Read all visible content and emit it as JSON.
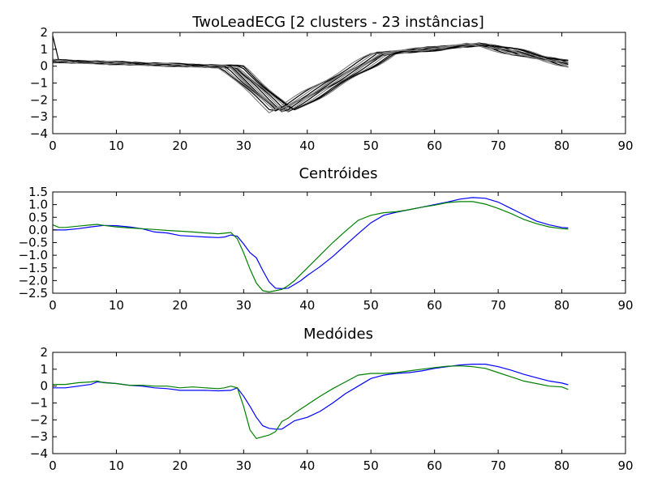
{
  "chart_data": [
    {
      "type": "line",
      "title": "TwoLeadECG [2 clusters - 23 instâncias]",
      "xlabel": "",
      "ylabel": "",
      "xlim": [
        0,
        90
      ],
      "ylim": [
        -4,
        2
      ],
      "xticks": [
        0,
        10,
        20,
        30,
        40,
        50,
        60,
        70,
        80,
        90
      ],
      "yticks": [
        2,
        1,
        0,
        -1,
        -2,
        -3,
        -4
      ],
      "grid": false,
      "legend": "none",
      "series_colors": {
        "cluster_a": "#000000",
        "cluster_b": "#808080"
      },
      "series": []
    },
    {
      "type": "line",
      "title": "Centróides",
      "xlabel": "",
      "ylabel": "",
      "xlim": [
        0,
        90
      ],
      "ylim": [
        -2.5,
        1.5
      ],
      "xticks": [
        0,
        10,
        20,
        30,
        40,
        50,
        60,
        70,
        80,
        90
      ],
      "yticks": [
        "1.5",
        "1.0",
        "0.5",
        "0.0",
        "−0.5",
        "−1.0",
        "−1.5",
        "−2.0",
        "−2.5"
      ],
      "grid": false,
      "legend": "none",
      "series": [
        {
          "color": "#0000ff",
          "x": [
            0,
            2,
            4,
            6,
            8,
            10,
            12,
            14,
            16,
            18,
            20,
            22,
            24,
            26,
            27,
            28,
            29,
            30,
            31,
            32,
            33,
            34,
            35,
            36,
            37,
            38,
            39,
            40,
            42,
            44,
            46,
            48,
            50,
            52,
            54,
            56,
            58,
            60,
            62,
            64,
            66,
            68,
            70,
            72,
            74,
            76,
            78,
            80,
            81
          ],
          "values": [
            0.0,
            0.0,
            0.05,
            0.12,
            0.18,
            0.17,
            0.12,
            0.05,
            -0.08,
            -0.12,
            -0.22,
            -0.25,
            -0.28,
            -0.3,
            -0.28,
            -0.2,
            -0.25,
            -0.55,
            -0.9,
            -1.1,
            -1.6,
            -2.05,
            -2.3,
            -2.32,
            -2.3,
            -2.15,
            -2.0,
            -1.8,
            -1.45,
            -1.05,
            -0.6,
            -0.15,
            0.28,
            0.58,
            0.7,
            0.8,
            0.9,
            1.0,
            1.1,
            1.22,
            1.28,
            1.25,
            1.1,
            0.85,
            0.6,
            0.35,
            0.2,
            0.1,
            0.08
          ]
        },
        {
          "color": "#008000",
          "x": [
            0,
            1,
            2,
            4,
            6,
            7,
            8,
            10,
            12,
            14,
            16,
            18,
            20,
            22,
            24,
            26,
            27,
            28,
            29,
            30,
            31,
            32,
            33,
            34,
            35,
            36,
            37,
            38,
            39,
            40,
            42,
            44,
            46,
            48,
            50,
            52,
            54,
            56,
            58,
            60,
            62,
            64,
            66,
            68,
            70,
            72,
            74,
            76,
            78,
            80,
            81
          ],
          "values": [
            0.2,
            0.1,
            0.1,
            0.15,
            0.2,
            0.22,
            0.18,
            0.12,
            0.08,
            0.05,
            0.02,
            -0.02,
            -0.05,
            -0.08,
            -0.12,
            -0.15,
            -0.13,
            -0.1,
            -0.35,
            -0.9,
            -1.55,
            -2.1,
            -2.4,
            -2.45,
            -2.4,
            -2.35,
            -2.2,
            -2.0,
            -1.75,
            -1.5,
            -1.0,
            -0.5,
            -0.05,
            0.38,
            0.58,
            0.68,
            0.72,
            0.8,
            0.9,
            0.98,
            1.08,
            1.12,
            1.12,
            1.02,
            0.85,
            0.65,
            0.42,
            0.25,
            0.12,
            0.05,
            0.03
          ]
        }
      ]
    },
    {
      "type": "line",
      "title": "Medóides",
      "xlabel": "",
      "ylabel": "",
      "xlim": [
        0,
        90
      ],
      "ylim": [
        -4,
        2
      ],
      "xticks": [
        0,
        10,
        20,
        30,
        40,
        50,
        60,
        70,
        80,
        90
      ],
      "yticks": [
        2,
        1,
        0,
        -1,
        -2,
        -3,
        -4
      ],
      "grid": false,
      "legend": "none",
      "series": [
        {
          "color": "#0000ff",
          "x": [
            0,
            2,
            4,
            6,
            7,
            8,
            10,
            12,
            14,
            16,
            18,
            20,
            22,
            24,
            26,
            28,
            29,
            30,
            31,
            32,
            33,
            34,
            35,
            36,
            37,
            38,
            40,
            42,
            44,
            46,
            48,
            50,
            52,
            54,
            56,
            58,
            60,
            62,
            64,
            66,
            68,
            70,
            72,
            74,
            76,
            78,
            80,
            81
          ],
          "values": [
            -0.1,
            -0.1,
            0.0,
            0.1,
            0.25,
            0.22,
            0.15,
            0.05,
            0.0,
            -0.1,
            -0.15,
            -0.25,
            -0.25,
            -0.25,
            -0.28,
            -0.25,
            -0.1,
            -0.6,
            -1.2,
            -1.85,
            -2.35,
            -2.5,
            -2.55,
            -2.55,
            -2.3,
            -2.05,
            -1.85,
            -1.5,
            -1.0,
            -0.45,
            0.0,
            0.45,
            0.65,
            0.75,
            0.8,
            0.9,
            1.05,
            1.15,
            1.25,
            1.3,
            1.3,
            1.15,
            0.95,
            0.7,
            0.5,
            0.3,
            0.18,
            0.08
          ]
        },
        {
          "color": "#008000",
          "x": [
            0,
            2,
            4,
            6,
            7,
            8,
            10,
            12,
            14,
            16,
            18,
            20,
            22,
            24,
            26,
            27,
            28,
            29,
            30,
            31,
            32,
            33,
            34,
            35,
            36,
            37,
            38,
            40,
            42,
            44,
            46,
            48,
            50,
            52,
            54,
            56,
            58,
            60,
            62,
            64,
            66,
            68,
            70,
            72,
            74,
            76,
            78,
            80,
            81
          ],
          "values": [
            0.1,
            0.1,
            0.2,
            0.25,
            0.3,
            0.2,
            0.15,
            0.05,
            0.05,
            0.0,
            0.0,
            -0.1,
            -0.05,
            -0.1,
            -0.15,
            -0.1,
            0.0,
            -0.1,
            -1.2,
            -2.6,
            -3.1,
            -3.0,
            -2.9,
            -2.7,
            -2.1,
            -1.9,
            -1.6,
            -1.1,
            -0.6,
            -0.15,
            0.25,
            0.65,
            0.75,
            0.75,
            0.8,
            0.9,
            1.0,
            1.1,
            1.18,
            1.2,
            1.15,
            1.05,
            0.8,
            0.55,
            0.3,
            0.15,
            0.0,
            -0.05,
            -0.2
          ]
        }
      ]
    }
  ]
}
